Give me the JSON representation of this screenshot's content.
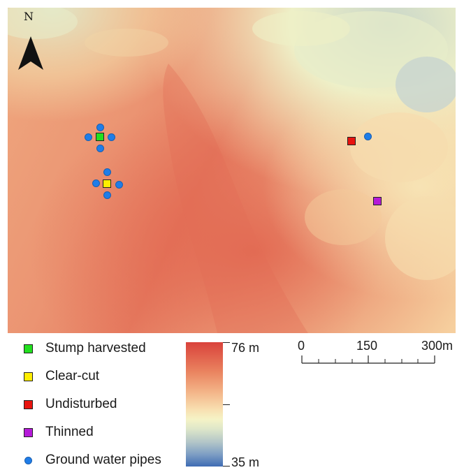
{
  "map": {
    "north_label": "N",
    "colors": {
      "high": "#d9423b",
      "mid": "#f5f3c6",
      "low": "#3e6cb4",
      "stump_harvested": "#22e01f",
      "clear_cut": "#ffee00",
      "undisturbed": "#e8140f",
      "thinned": "#b51ad9",
      "pipe": "#1f7de8"
    }
  },
  "legend": {
    "items": [
      {
        "label": "Stump harvested",
        "color": "#22e01f",
        "symbol": "square"
      },
      {
        "label": "Clear-cut",
        "color": "#ffee00",
        "symbol": "square"
      },
      {
        "label": "Undisturbed",
        "color": "#e8140f",
        "symbol": "square"
      },
      {
        "label": "Thinned",
        "color": "#b51ad9",
        "symbol": "square"
      },
      {
        "label": "Ground water pipes",
        "color": "#1f7de8",
        "symbol": "circle"
      }
    ]
  },
  "elevation": {
    "max_label": "76 m",
    "min_label": "35 m"
  },
  "scale_bar": {
    "label_0": "0",
    "label_mid": "150",
    "label_end": "300m"
  }
}
